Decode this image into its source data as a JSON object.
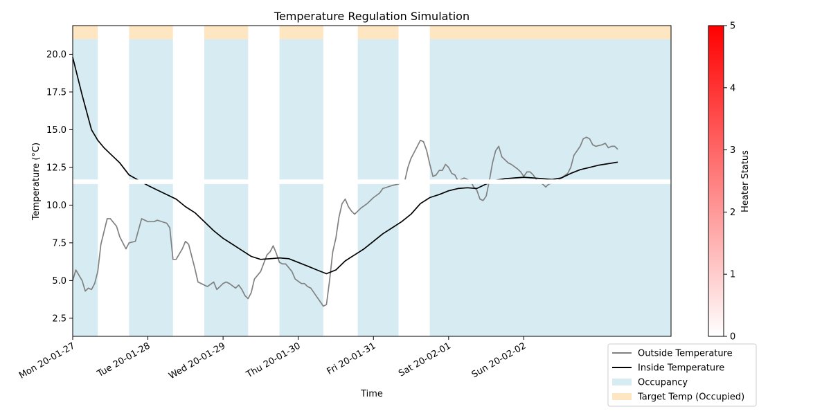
{
  "chart_data": {
    "type": "line",
    "title": "Temperature Regulation Simulation",
    "xlabel": "Time",
    "ylabel": "Temperature (°C)",
    "xlim": [
      "2020-01-27T00:00",
      "2020-02-03T23:00"
    ],
    "ylim": [
      1.3,
      21.9
    ],
    "grid": false,
    "legend_position": "bottom-right outside",
    "x_ticks": [
      {
        "value": "2020-01-27",
        "label": "Mon 20-01-27"
      },
      {
        "value": "2020-01-28",
        "label": "Tue 20-01-28"
      },
      {
        "value": "2020-01-29",
        "label": "Wed 20-01-29"
      },
      {
        "value": "2020-01-30",
        "label": "Thu 20-01-30"
      },
      {
        "value": "2020-01-31",
        "label": "Fri 20-01-31"
      },
      {
        "value": "2020-02-01",
        "label": "Sat 20-02-01"
      },
      {
        "value": "2020-02-02",
        "label": "Sun 20-02-02"
      }
    ],
    "y_ticks": [
      2.5,
      5.0,
      7.5,
      10.0,
      12.5,
      15.0,
      17.5,
      20.0
    ],
    "y_tick_labels": [
      "2.5",
      "5.0",
      "7.5",
      "10.0",
      "12.5",
      "15.0",
      "17.5",
      "20.0"
    ],
    "series": [
      {
        "name": "Outside Temperature",
        "color": "#808080",
        "points": [
          [
            "2020-01-27T00:00",
            5.0
          ],
          [
            "2020-01-27T01:00",
            5.7
          ],
          [
            "2020-01-27T03:00",
            5.0
          ],
          [
            "2020-01-27T04:00",
            4.3
          ],
          [
            "2020-01-27T05:00",
            4.5
          ],
          [
            "2020-01-27T06:00",
            4.4
          ],
          [
            "2020-01-27T07:00",
            4.8
          ],
          [
            "2020-01-27T08:00",
            5.6
          ],
          [
            "2020-01-27T09:00",
            7.4
          ],
          [
            "2020-01-27T11:00",
            9.1
          ],
          [
            "2020-01-27T12:00",
            9.1
          ],
          [
            "2020-01-27T14:00",
            8.6
          ],
          [
            "2020-01-27T15:00",
            7.9
          ],
          [
            "2020-01-27T17:00",
            7.1
          ],
          [
            "2020-01-27T18:00",
            7.5
          ],
          [
            "2020-01-27T20:00",
            7.6
          ],
          [
            "2020-01-27T22:00",
            9.1
          ],
          [
            "2020-01-28T00:00",
            8.9
          ],
          [
            "2020-01-28T02:00",
            8.9
          ],
          [
            "2020-01-28T03:00",
            9.0
          ],
          [
            "2020-01-28T06:00",
            8.8
          ],
          [
            "2020-01-28T07:00",
            8.5
          ],
          [
            "2020-01-28T08:00",
            6.4
          ],
          [
            "2020-01-28T09:00",
            6.4
          ],
          [
            "2020-01-28T11:00",
            7.1
          ],
          [
            "2020-01-28T12:00",
            7.6
          ],
          [
            "2020-01-28T13:00",
            7.4
          ],
          [
            "2020-01-28T15:00",
            5.8
          ],
          [
            "2020-01-28T16:00",
            4.9
          ],
          [
            "2020-01-28T17:00",
            4.8
          ],
          [
            "2020-01-28T19:00",
            4.6
          ],
          [
            "2020-01-28T21:00",
            4.9
          ],
          [
            "2020-01-28T22:00",
            4.4
          ],
          [
            "2020-01-29T00:00",
            4.8
          ],
          [
            "2020-01-29T01:00",
            4.9
          ],
          [
            "2020-01-29T02:00",
            4.8
          ],
          [
            "2020-01-29T04:00",
            4.5
          ],
          [
            "2020-01-29T05:00",
            4.7
          ],
          [
            "2020-01-29T06:00",
            4.4
          ],
          [
            "2020-01-29T07:00",
            4.0
          ],
          [
            "2020-01-29T08:00",
            3.8
          ],
          [
            "2020-01-29T09:00",
            4.2
          ],
          [
            "2020-01-29T10:00",
            5.1
          ],
          [
            "2020-01-29T12:00",
            5.6
          ],
          [
            "2020-01-29T14:00",
            6.7
          ],
          [
            "2020-01-29T15:00",
            6.9
          ],
          [
            "2020-01-29T16:00",
            7.3
          ],
          [
            "2020-01-29T17:00",
            6.8
          ],
          [
            "2020-01-29T18:00",
            6.2
          ],
          [
            "2020-01-29T19:00",
            6.1
          ],
          [
            "2020-01-29T20:00",
            6.1
          ],
          [
            "2020-01-29T22:00",
            5.6
          ],
          [
            "2020-01-29T23:00",
            5.1
          ],
          [
            "2020-01-30T01:00",
            4.8
          ],
          [
            "2020-01-30T02:00",
            4.8
          ],
          [
            "2020-01-30T03:00",
            4.6
          ],
          [
            "2020-01-30T04:00",
            4.5
          ],
          [
            "2020-01-30T06:00",
            3.9
          ],
          [
            "2020-01-30T07:00",
            3.6
          ],
          [
            "2020-01-30T08:00",
            3.3
          ],
          [
            "2020-01-30T09:00",
            3.4
          ],
          [
            "2020-01-30T10:00",
            5.0
          ],
          [
            "2020-01-30T11:00",
            6.9
          ],
          [
            "2020-01-30T12:00",
            7.8
          ],
          [
            "2020-01-30T13:00",
            9.2
          ],
          [
            "2020-01-30T14:00",
            10.1
          ],
          [
            "2020-01-30T15:00",
            10.4
          ],
          [
            "2020-01-30T16:00",
            9.9
          ],
          [
            "2020-01-30T17:00",
            9.6
          ],
          [
            "2020-01-30T18:00",
            9.4
          ],
          [
            "2020-01-30T20:00",
            9.8
          ],
          [
            "2020-01-30T22:00",
            10.1
          ],
          [
            "2020-01-31T00:00",
            10.5
          ],
          [
            "2020-01-31T02:00",
            10.8
          ],
          [
            "2020-01-31T03:00",
            11.1
          ],
          [
            "2020-01-31T06:00",
            11.3
          ],
          [
            "2020-01-31T08:00",
            11.4
          ],
          [
            "2020-01-31T10:00",
            11.6
          ],
          [
            "2020-01-31T11:00",
            12.5
          ],
          [
            "2020-01-31T12:00",
            13.1
          ],
          [
            "2020-01-31T13:00",
            13.5
          ],
          [
            "2020-01-31T14:00",
            13.9
          ],
          [
            "2020-01-31T15:00",
            14.3
          ],
          [
            "2020-01-31T16:00",
            14.2
          ],
          [
            "2020-01-31T17:00",
            13.6
          ],
          [
            "2020-01-31T18:00",
            12.7
          ],
          [
            "2020-01-31T19:00",
            11.9
          ],
          [
            "2020-01-31T20:00",
            12.0
          ],
          [
            "2020-01-31T21:00",
            12.3
          ],
          [
            "2020-01-31T22:00",
            12.3
          ],
          [
            "2020-01-31T23:00",
            12.7
          ],
          [
            "2020-02-01T00:00",
            12.5
          ],
          [
            "2020-02-01T01:00",
            12.1
          ],
          [
            "2020-02-01T02:00",
            12.0
          ],
          [
            "2020-02-01T03:00",
            11.6
          ],
          [
            "2020-02-01T05:00",
            11.8
          ],
          [
            "2020-02-01T07:00",
            11.6
          ],
          [
            "2020-02-01T08:00",
            11.2
          ],
          [
            "2020-02-01T09:00",
            11.0
          ],
          [
            "2020-02-01T10:00",
            10.4
          ],
          [
            "2020-02-01T11:00",
            10.3
          ],
          [
            "2020-02-01T12:00",
            10.6
          ],
          [
            "2020-02-01T13:00",
            11.6
          ],
          [
            "2020-02-01T14:00",
            12.8
          ],
          [
            "2020-02-01T15:00",
            13.6
          ],
          [
            "2020-02-01T16:00",
            13.9
          ],
          [
            "2020-02-01T17:00",
            13.2
          ],
          [
            "2020-02-01T18:00",
            13.0
          ],
          [
            "2020-02-01T19:00",
            12.8
          ],
          [
            "2020-02-01T20:00",
            12.7
          ],
          [
            "2020-02-01T22:00",
            12.4
          ],
          [
            "2020-02-01T23:00",
            12.2
          ],
          [
            "2020-02-02T00:00",
            11.9
          ],
          [
            "2020-02-02T01:00",
            12.2
          ],
          [
            "2020-02-02T02:00",
            12.2
          ],
          [
            "2020-02-02T03:00",
            12.0
          ],
          [
            "2020-02-02T04:00",
            11.7
          ],
          [
            "2020-02-02T05:00",
            11.5
          ],
          [
            "2020-02-02T06:00",
            11.4
          ],
          [
            "2020-02-02T07:00",
            11.2
          ],
          [
            "2020-02-02T08:00",
            11.4
          ],
          [
            "2020-02-02T10:00",
            11.5
          ],
          [
            "2020-02-02T12:00",
            11.8
          ],
          [
            "2020-02-02T14:00",
            12.1
          ],
          [
            "2020-02-02T15:00",
            12.5
          ],
          [
            "2020-02-02T16:00",
            13.3
          ],
          [
            "2020-02-02T17:00",
            13.6
          ],
          [
            "2020-02-02T18:00",
            13.9
          ],
          [
            "2020-02-02T19:00",
            14.4
          ],
          [
            "2020-02-02T20:00",
            14.5
          ],
          [
            "2020-02-02T21:00",
            14.4
          ],
          [
            "2020-02-02T22:00",
            14.0
          ],
          [
            "2020-02-02T23:00",
            13.9
          ],
          [
            "2020-02-03T01:00",
            14.0
          ],
          [
            "2020-02-03T02:00",
            14.1
          ],
          [
            "2020-02-03T03:00",
            13.8
          ],
          [
            "2020-02-03T04:00",
            13.9
          ],
          [
            "2020-02-03T05:00",
            13.9
          ],
          [
            "2020-02-03T06:00",
            13.7
          ]
        ]
      },
      {
        "name": "Inside Temperature",
        "color": "#000000",
        "points": [
          [
            "2020-01-27T00:00",
            19.8
          ],
          [
            "2020-01-27T03:00",
            17.3
          ],
          [
            "2020-01-27T06:00",
            15.0
          ],
          [
            "2020-01-27T08:00",
            14.3
          ],
          [
            "2020-01-27T10:00",
            13.8
          ],
          [
            "2020-01-27T12:00",
            13.4
          ],
          [
            "2020-01-27T15:00",
            12.8
          ],
          [
            "2020-01-27T18:00",
            12.0
          ],
          [
            "2020-01-28T00:00",
            11.3
          ],
          [
            "2020-01-28T03:00",
            11.0
          ],
          [
            "2020-01-28T06:00",
            10.7
          ],
          [
            "2020-01-28T09:00",
            10.4
          ],
          [
            "2020-01-28T12:00",
            9.9
          ],
          [
            "2020-01-28T15:00",
            9.5
          ],
          [
            "2020-01-28T18:00",
            8.9
          ],
          [
            "2020-01-28T21:00",
            8.3
          ],
          [
            "2020-01-29T00:00",
            7.8
          ],
          [
            "2020-01-29T03:00",
            7.4
          ],
          [
            "2020-01-29T06:00",
            7.0
          ],
          [
            "2020-01-29T09:00",
            6.6
          ],
          [
            "2020-01-29T12:00",
            6.4
          ],
          [
            "2020-01-29T15:00",
            6.45
          ],
          [
            "2020-01-29T18:00",
            6.5
          ],
          [
            "2020-01-29T21:00",
            6.45
          ],
          [
            "2020-01-30T00:00",
            6.2
          ],
          [
            "2020-01-30T03:00",
            5.95
          ],
          [
            "2020-01-30T06:00",
            5.7
          ],
          [
            "2020-01-30T09:00",
            5.45
          ],
          [
            "2020-01-30T12:00",
            5.7
          ],
          [
            "2020-01-30T15:00",
            6.3
          ],
          [
            "2020-01-30T18:00",
            6.7
          ],
          [
            "2020-01-30T21:00",
            7.1
          ],
          [
            "2020-01-31T00:00",
            7.6
          ],
          [
            "2020-01-31T03:00",
            8.1
          ],
          [
            "2020-01-31T06:00",
            8.5
          ],
          [
            "2020-01-31T09:00",
            8.9
          ],
          [
            "2020-01-31T12:00",
            9.4
          ],
          [
            "2020-01-31T15:00",
            10.1
          ],
          [
            "2020-01-31T18:00",
            10.5
          ],
          [
            "2020-01-31T21:00",
            10.7
          ],
          [
            "2020-02-01T00:00",
            10.95
          ],
          [
            "2020-02-01T03:00",
            11.1
          ],
          [
            "2020-02-01T06:00",
            11.15
          ],
          [
            "2020-02-01T09:00",
            11.1
          ],
          [
            "2020-02-01T12:00",
            11.4
          ],
          [
            "2020-02-01T15:00",
            11.65
          ],
          [
            "2020-02-01T18:00",
            11.75
          ],
          [
            "2020-02-01T21:00",
            11.8
          ],
          [
            "2020-02-02T00:00",
            11.85
          ],
          [
            "2020-02-02T03:00",
            11.8
          ],
          [
            "2020-02-02T06:00",
            11.75
          ],
          [
            "2020-02-02T09:00",
            11.7
          ],
          [
            "2020-02-02T12:00",
            11.8
          ],
          [
            "2020-02-02T15:00",
            12.1
          ],
          [
            "2020-02-02T18:00",
            12.35
          ],
          [
            "2020-02-02T21:00",
            12.5
          ],
          [
            "2020-02-03T00:00",
            12.65
          ],
          [
            "2020-02-03T06:00",
            12.85
          ]
        ]
      }
    ],
    "occupancy_spans": [
      [
        "2020-01-27T00:00",
        "2020-01-27T08:00"
      ],
      [
        "2020-01-27T18:00",
        "2020-01-28T08:00"
      ],
      [
        "2020-01-28T18:00",
        "2020-01-29T08:00"
      ],
      [
        "2020-01-29T18:00",
        "2020-01-30T08:00"
      ],
      [
        "2020-01-30T19:00",
        "2020-01-31T08:00"
      ],
      [
        "2020-01-31T18:00",
        "2020-02-03T23:00"
      ]
    ],
    "occupancy_band": [
      1.3,
      21.0
    ],
    "target_temp_band": [
      21.0,
      21.9
    ],
    "comfort_gap_band": [
      11.4,
      11.7
    ],
    "legend": [
      {
        "label": "Outside Temperature",
        "kind": "line",
        "color": "#808080"
      },
      {
        "label": "Inside Temperature",
        "kind": "line",
        "color": "#000000"
      },
      {
        "label": "Occupancy",
        "kind": "patch",
        "color": "#add8e6"
      },
      {
        "label": "Target Temp (Occupied)",
        "kind": "patch",
        "color": "#ffdead"
      }
    ],
    "colorbar": {
      "label": "Heater Status",
      "min": 0,
      "max": 5,
      "ticks": [
        0,
        1,
        2,
        3,
        4,
        5
      ],
      "color_low": "#ffffff",
      "color_high": "#ff0000"
    }
  }
}
